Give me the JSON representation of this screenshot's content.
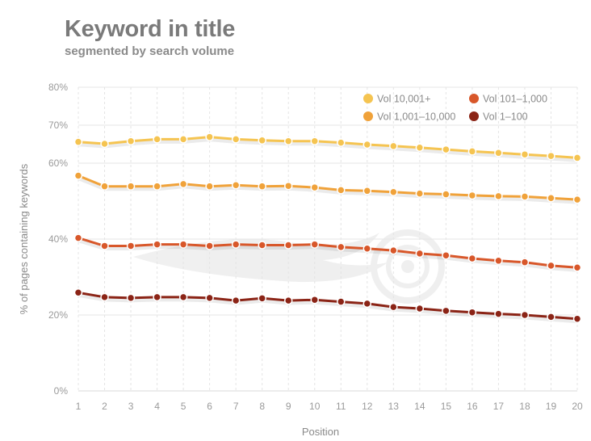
{
  "title": "Keyword in title",
  "subtitle": "segmented by search volume",
  "chart_data": {
    "type": "line",
    "xlabel": "Position",
    "ylabel": "% of pages containing keywords",
    "x": [
      1,
      2,
      3,
      4,
      5,
      6,
      7,
      8,
      9,
      10,
      11,
      12,
      13,
      14,
      15,
      16,
      17,
      18,
      19,
      20
    ],
    "ylim": [
      0,
      80
    ],
    "yticks": [
      0,
      20,
      40,
      60,
      70,
      80
    ],
    "ytick_labels": [
      "0%",
      "20%",
      "40%",
      "60%",
      "70%",
      "80%"
    ],
    "grid": true,
    "legend_position": "top-right",
    "series": [
      {
        "name": "Vol 10,001+",
        "color": "#f5c451",
        "values": [
          65.6,
          65.1,
          65.8,
          66.3,
          66.3,
          66.9,
          66.3,
          66.0,
          65.8,
          65.8,
          65.4,
          64.9,
          64.5,
          64.1,
          63.6,
          63.1,
          62.7,
          62.3,
          61.9,
          61.4
        ]
      },
      {
        "name": "Vol 1,001–10,000",
        "color": "#f0a23a",
        "values": [
          56.7,
          53.9,
          53.9,
          53.9,
          54.5,
          53.9,
          54.2,
          53.9,
          54.0,
          53.6,
          52.9,
          52.7,
          52.4,
          52.0,
          51.8,
          51.5,
          51.3,
          51.2,
          50.8,
          50.4
        ]
      },
      {
        "name": "Vol 101–1,000",
        "color": "#d8572a",
        "values": [
          40.3,
          38.2,
          38.2,
          38.6,
          38.6,
          38.2,
          38.6,
          38.4,
          38.4,
          38.6,
          37.9,
          37.5,
          37.0,
          36.2,
          35.7,
          34.9,
          34.3,
          33.9,
          33.0,
          32.5
        ]
      },
      {
        "name": "Vol 1–100",
        "color": "#8b2416",
        "values": [
          25.9,
          24.7,
          24.5,
          24.7,
          24.7,
          24.5,
          23.8,
          24.4,
          23.8,
          24.0,
          23.5,
          23.0,
          22.1,
          21.7,
          21.1,
          20.7,
          20.3,
          20.0,
          19.5,
          19.0
        ]
      }
    ]
  }
}
